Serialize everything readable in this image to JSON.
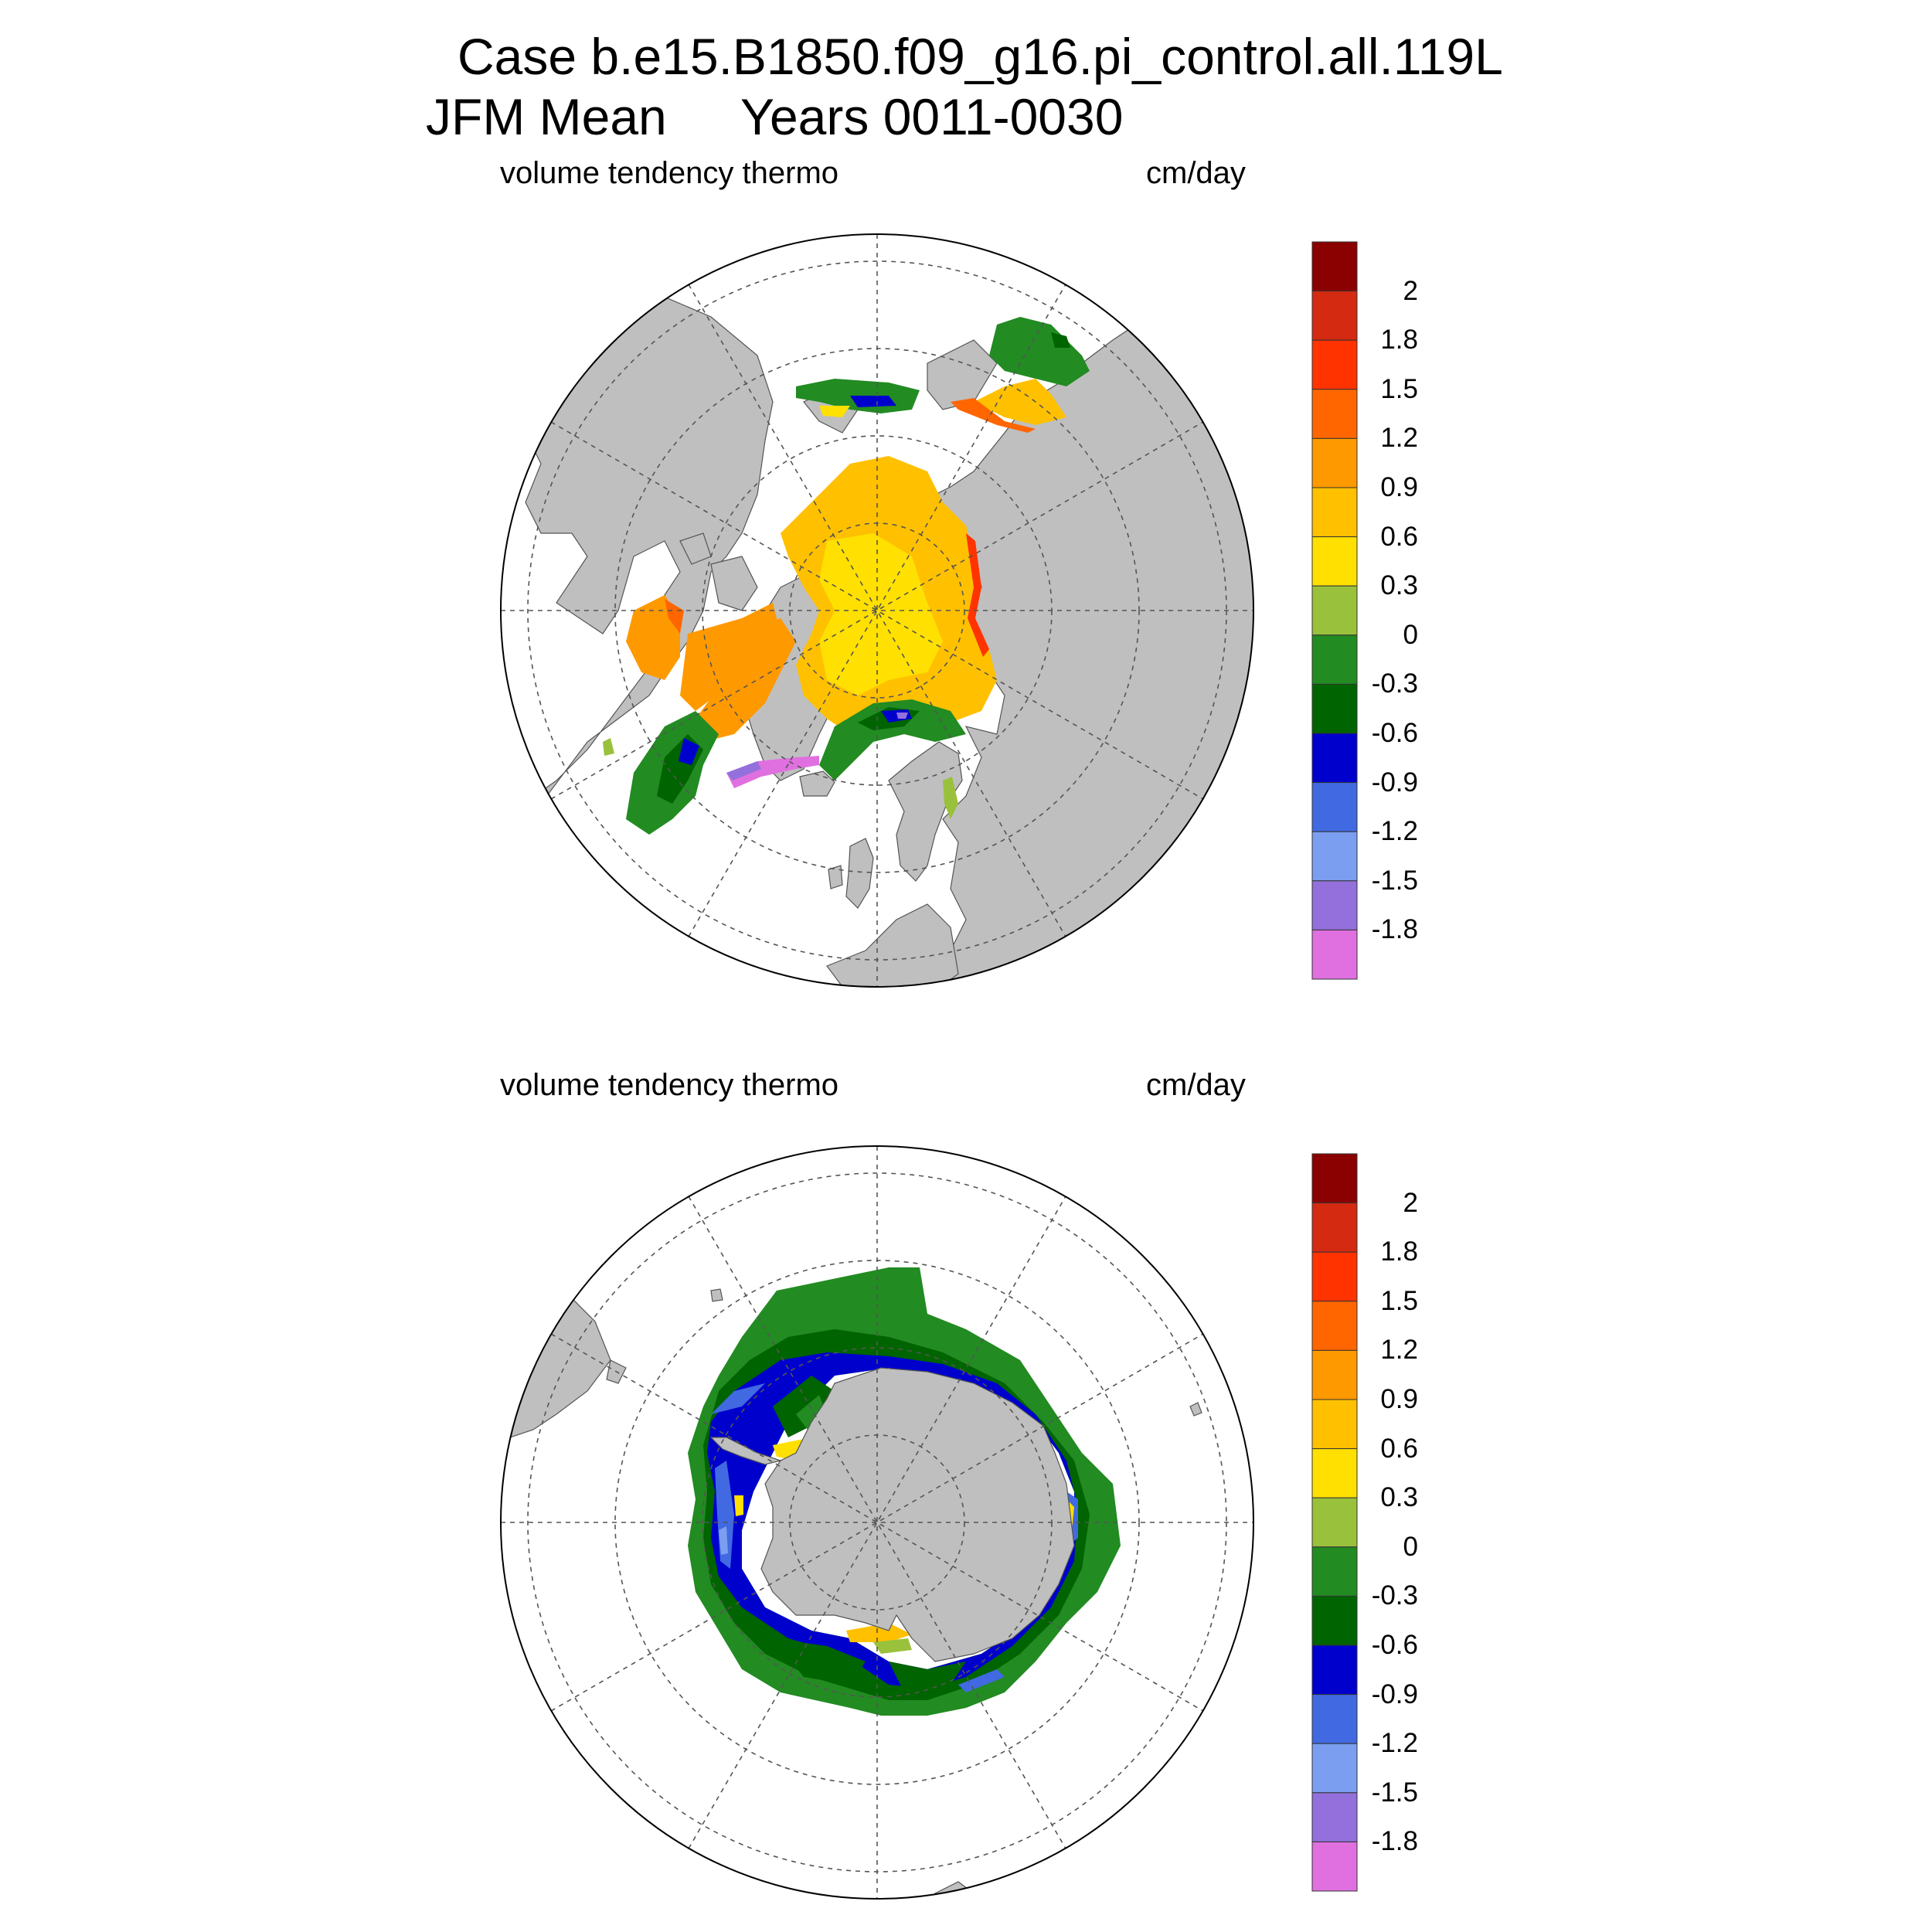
{
  "header": {
    "case_line": "Case b.e15.B1850.f09_g16.pi_control.all.119L",
    "period_label": "JFM Mean",
    "years_label": "Years 0011-0030"
  },
  "panels": [
    {
      "hemisphere": "north",
      "variable_label": "volume tendency thermo",
      "units_label": "cm/day"
    },
    {
      "hemisphere": "south",
      "variable_label": "volume tendency thermo",
      "units_label": "cm/day"
    }
  ],
  "colorbar": {
    "labels": [
      "2",
      "1.8",
      "1.5",
      "1.2",
      "0.9",
      "0.6",
      "0.3",
      "0",
      "-0.3",
      "-0.6",
      "-0.9",
      "-1.2",
      "-1.5",
      "-1.8"
    ],
    "colors": [
      "#8b0000",
      "#d42a12",
      "#ff3300",
      "#ff6600",
      "#ff9900",
      "#ffc000",
      "#ffe000",
      "#9ac13c",
      "#228b22",
      "#006400",
      "#0000cd",
      "#4169e1",
      "#7b9ef0",
      "#9370db",
      "#e070e0"
    ]
  },
  "map_style": {
    "land_color": "#bfbfbf",
    "ocean_color": "#ffffff",
    "grid_style": "dashed"
  }
}
